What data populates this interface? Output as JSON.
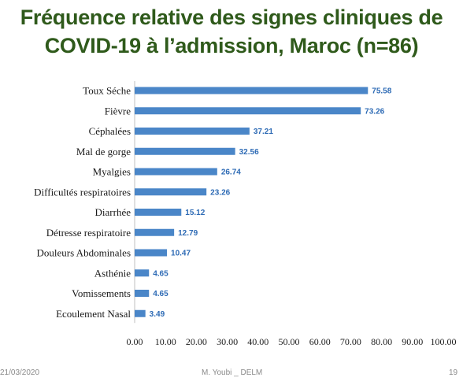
{
  "title_line1": "Fréquence relative des signes cliniques de",
  "title_line2": "COVID-19 à l’admission, Maroc (n=86)",
  "footer": {
    "date": "21/03/2020",
    "author": "M. Youbi _ DELM",
    "page": "19"
  },
  "chart_data": {
    "type": "bar",
    "orientation": "horizontal",
    "title": "Fréquence relative des signes cliniques de COVID-19 à l’admission, Maroc (n=86)",
    "categories": [
      "Toux Séche",
      "Fièvre",
      "Céphalées",
      "Mal de gorge",
      "Myalgies",
      "Difficultés respiratoires",
      "Diarrhée",
      "Détresse respiratoire",
      "Douleurs Abdominales",
      "Asthénie",
      "Vomissements",
      "Ecoulement Nasal"
    ],
    "values": [
      75.58,
      73.26,
      37.21,
      32.56,
      26.74,
      23.26,
      15.12,
      12.79,
      10.47,
      4.65,
      4.65,
      3.49
    ],
    "value_labels": [
      "75.58",
      "73.26",
      "37.21",
      "32.56",
      "26.74",
      "23.26",
      "15.12",
      "12.79",
      "10.47",
      "4.65",
      "4.65",
      "3.49"
    ],
    "xlim": [
      0,
      100
    ],
    "xticks": [
      "0.00",
      "10.00",
      "20.00",
      "30.00",
      "40.00",
      "50.00",
      "60.00",
      "70.00",
      "80.00",
      "90.00",
      "100.00"
    ],
    "grid": false,
    "bar_color": "#4a86c8",
    "label_color": "#2e6bb5"
  }
}
